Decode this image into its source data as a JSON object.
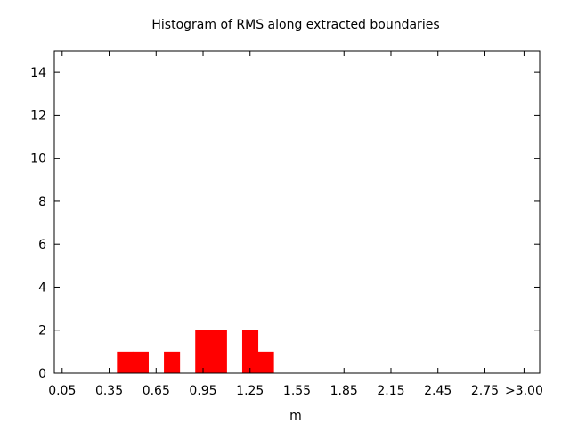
{
  "chart_data": {
    "type": "bar",
    "title": "Histogram of RMS along extracted boundaries",
    "xlabel": "m",
    "ylabel": "",
    "xlim": [
      0.0,
      3.1
    ],
    "ylim": [
      0,
      15
    ],
    "x_ticks": [
      {
        "value": 0.05,
        "label": "0.05"
      },
      {
        "value": 0.35,
        "label": "0.35"
      },
      {
        "value": 0.65,
        "label": "0.65"
      },
      {
        "value": 0.95,
        "label": "0.95"
      },
      {
        "value": 1.25,
        "label": "1.25"
      },
      {
        "value": 1.55,
        "label": "1.55"
      },
      {
        "value": 1.85,
        "label": "1.85"
      },
      {
        "value": 2.15,
        "label": "2.15"
      },
      {
        "value": 2.45,
        "label": "2.45"
      },
      {
        "value": 2.75,
        "label": "2.75"
      },
      {
        "value": 3.0,
        "label": ">3.00"
      }
    ],
    "y_ticks": [
      {
        "value": 0,
        "label": "0"
      },
      {
        "value": 2,
        "label": "2"
      },
      {
        "value": 4,
        "label": "4"
      },
      {
        "value": 6,
        "label": "6"
      },
      {
        "value": 8,
        "label": "8"
      },
      {
        "value": 10,
        "label": "10"
      },
      {
        "value": 12,
        "label": "12"
      },
      {
        "value": 14,
        "label": "14"
      }
    ],
    "bin_width": 0.1,
    "bins": [
      {
        "x": 0.45,
        "count": 1
      },
      {
        "x": 0.55,
        "count": 1
      },
      {
        "x": 0.75,
        "count": 1
      },
      {
        "x": 0.95,
        "count": 2
      },
      {
        "x": 1.05,
        "count": 2
      },
      {
        "x": 1.25,
        "count": 2
      },
      {
        "x": 1.35,
        "count": 1
      }
    ],
    "bar_color": "#ff0000",
    "grid": false,
    "legend": "none"
  }
}
